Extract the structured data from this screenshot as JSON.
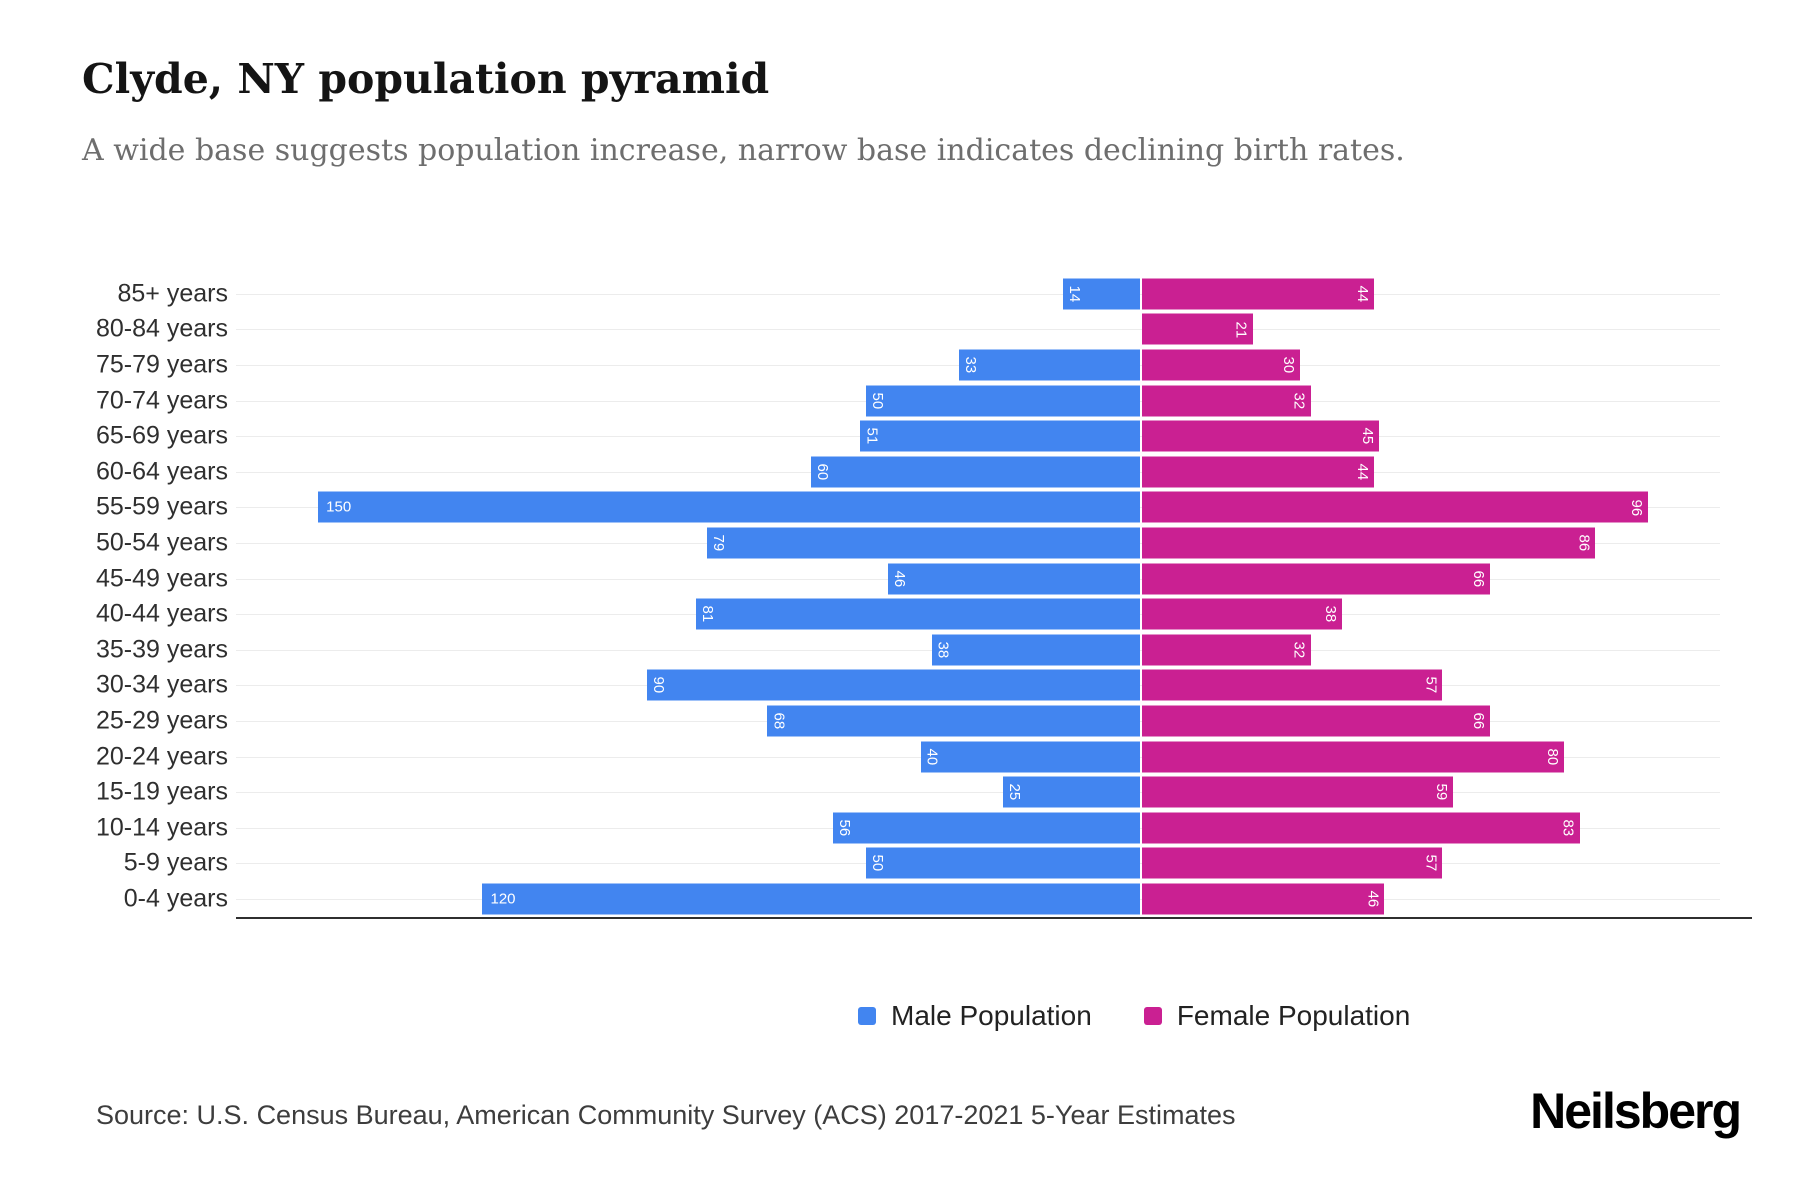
{
  "header": {
    "title": "Clyde, NY population pyramid",
    "subtitle": "A wide base suggests population increase, narrow base indicates declining birth rates."
  },
  "chart_data": {
    "type": "bar",
    "variant": "population-pyramid",
    "title": "Clyde, NY population pyramid",
    "categories": [
      "85+ years",
      "80-84 years",
      "75-79 years",
      "70-74 years",
      "65-69 years",
      "60-64 years",
      "55-59 years",
      "50-54 years",
      "45-49 years",
      "40-44 years",
      "35-39 years",
      "30-34 years",
      "25-29 years",
      "20-24 years",
      "15-19 years",
      "10-14 years",
      "5-9 years",
      "0-4 years"
    ],
    "series": [
      {
        "name": "Male Population",
        "side": "left",
        "color": "#4285f0",
        "values": [
          14,
          0,
          33,
          50,
          51,
          60,
          150,
          79,
          46,
          81,
          38,
          90,
          68,
          40,
          25,
          56,
          50,
          120
        ]
      },
      {
        "name": "Female Population",
        "side": "right",
        "color": "#ca2092",
        "values": [
          44,
          21,
          30,
          32,
          45,
          44,
          96,
          86,
          66,
          38,
          32,
          57,
          66,
          80,
          59,
          83,
          57,
          46
        ]
      }
    ],
    "value_label_color": "#ffffff",
    "male_axis_max": 165,
    "female_axis_max": 110,
    "grid": true,
    "gridline_color": "#ececec",
    "legend_position": "bottom-center"
  },
  "footer": {
    "source": "Source: U.S. Census Bureau, American Community Survey (ACS) 2017-2021 5-Year Estimates",
    "brand": "Neilsberg"
  }
}
